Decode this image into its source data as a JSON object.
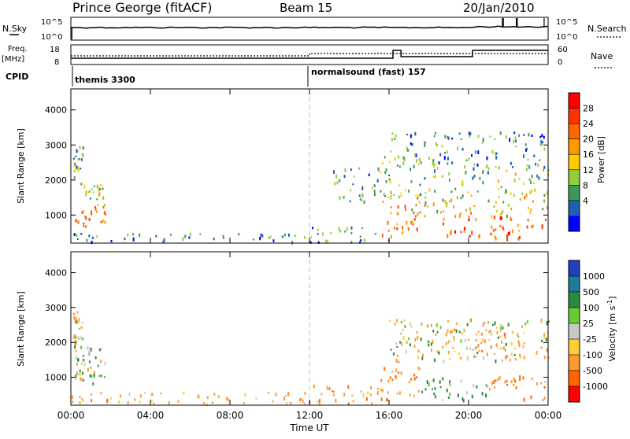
{
  "header": {
    "station": "Prince George (fitACF)",
    "beam": "Beam 15",
    "date": "20/Jan/2010"
  },
  "summary": {
    "nsky_label": "N.Sky",
    "nsky_ticks": [
      "10^5",
      "10^0"
    ],
    "nsearch_label": "N.Search",
    "nsearch_ticks": [
      "10^5",
      "10^0"
    ],
    "freq_label": "Freq.",
    "freq_unit": "[MHz]",
    "freq_ticks": [
      "18",
      "8"
    ],
    "nave_label": "Nave",
    "nave_ticks": [
      "60",
      "0"
    ],
    "cpid_label": "CPID",
    "cpid_segments": [
      {
        "label": "themis 3300",
        "start_hour": 0
      },
      {
        "label": "normalsound (fast) 157",
        "start_hour": 12
      }
    ]
  },
  "time_axis": {
    "label": "Time UT",
    "ticks": [
      "00:00",
      "04:00",
      "08:00",
      "12:00",
      "16:00",
      "20:00",
      "00:00"
    ],
    "hours": [
      0,
      4,
      8,
      12,
      16,
      20,
      24
    ]
  },
  "panels": {
    "range_label": "Slant Range [km]",
    "range_ticks": [
      "4000",
      "3000",
      "2000",
      "1000"
    ],
    "range_values": [
      4000,
      3000,
      2000,
      1000
    ],
    "range_limits": [
      200,
      4600
    ]
  },
  "colorbars": {
    "power": {
      "title": "Power [dB]",
      "ticks": [
        "28",
        "24",
        "20",
        "16",
        "12",
        "8",
        "4"
      ],
      "colors": [
        "#ff0000",
        "#ff3300",
        "#ff6600",
        "#ff9900",
        "#ffcc00",
        "#8fcf3a",
        "#3a9a5a",
        "#2060b0",
        "#0000ff"
      ]
    },
    "velocity": {
      "title": "Velocity [m s^-1]",
      "ticks": [
        "1000",
        "500",
        "100",
        "25",
        "-25",
        "-100",
        "-500",
        "-1000"
      ],
      "colors": [
        "#2040c0",
        "#207a9a",
        "#2a8a40",
        "#66cc33",
        "#c8c8c8",
        "#ffcc33",
        "#ff9933",
        "#ff6600",
        "#ff0000"
      ]
    }
  },
  "chart_data": [
    {
      "type": "heatmap",
      "title": "Power [dB]",
      "xlabel": "Time UT",
      "ylabel": "Slant Range [km]",
      "xlim": [
        0,
        24
      ],
      "ylim": [
        200,
        4600
      ],
      "cblim": [
        0,
        30
      ],
      "regions": [
        {
          "t0": 0.2,
          "t1": 1.7,
          "r0": 700,
          "r1": 1300,
          "level": 22
        },
        {
          "t0": 0.2,
          "t1": 1.7,
          "r0": 1300,
          "r1": 1900,
          "level": 12
        },
        {
          "t0": 0.1,
          "t1": 0.6,
          "r0": 1900,
          "r1": 3000,
          "level": 9
        },
        {
          "t0": 0.0,
          "t1": 12.0,
          "r0": 250,
          "r1": 500,
          "level": 6
        },
        {
          "t0": 12.0,
          "t1": 15.5,
          "r0": 250,
          "r1": 700,
          "level": 7
        },
        {
          "t0": 13.0,
          "t1": 15.5,
          "r0": 1400,
          "r1": 2400,
          "level": 8
        },
        {
          "t0": 15.5,
          "t1": 17.5,
          "r0": 300,
          "r1": 1500,
          "level": 21
        },
        {
          "t0": 15.5,
          "t1": 18.5,
          "r0": 1500,
          "r1": 2700,
          "level": 9
        },
        {
          "t0": 17.0,
          "t1": 24.0,
          "r0": 1000,
          "r1": 1600,
          "level": 14
        },
        {
          "t0": 18.5,
          "t1": 24.0,
          "r0": 350,
          "r1": 1000,
          "level": 24
        },
        {
          "t0": 18.5,
          "t1": 24.0,
          "r0": 1600,
          "r1": 2400,
          "level": 11
        },
        {
          "t0": 16.0,
          "t1": 24.0,
          "r0": 2400,
          "r1": 3400,
          "level": 6
        }
      ]
    },
    {
      "type": "heatmap",
      "title": "Velocity [m s^-1]",
      "xlabel": "Time UT",
      "ylabel": "Slant Range [km]",
      "xlim": [
        0,
        24
      ],
      "ylim": [
        200,
        4600
      ],
      "cblim": [
        -1000,
        1000
      ],
      "regions": [
        {
          "t0": 0.2,
          "t1": 1.7,
          "r0": 700,
          "r1": 1300,
          "velocity": 0
        },
        {
          "t0": 0.2,
          "t1": 1.7,
          "r0": 1300,
          "r1": 1900,
          "velocity": 50
        },
        {
          "t0": 0.1,
          "t1": 0.6,
          "r0": 1900,
          "r1": 3000,
          "velocity": -80
        },
        {
          "t0": 0.0,
          "t1": 12.0,
          "r0": 250,
          "r1": 600,
          "velocity": -150
        },
        {
          "t0": 12.0,
          "t1": 15.5,
          "r0": 250,
          "r1": 800,
          "velocity": -200
        },
        {
          "t0": 15.5,
          "t1": 17.5,
          "r0": 300,
          "r1": 1500,
          "velocity": -300
        },
        {
          "t0": 16.0,
          "t1": 24.0,
          "r0": 1500,
          "r1": 2700,
          "velocity": 0
        },
        {
          "t0": 17.5,
          "t1": 21.0,
          "r0": 350,
          "r1": 1100,
          "velocity": 150
        },
        {
          "t0": 21.0,
          "t1": 24.0,
          "r0": 350,
          "r1": 1100,
          "velocity": -300
        },
        {
          "t0": 18.5,
          "t1": 24.0,
          "r0": 1600,
          "r1": 2400,
          "velocity": -150
        }
      ]
    }
  ]
}
